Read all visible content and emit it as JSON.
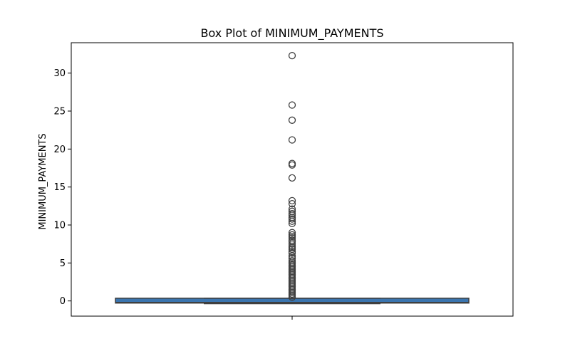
{
  "chart_data": {
    "type": "box",
    "title": "Box Plot of MINIMUM_PAYMENTS",
    "xlabel": "",
    "ylabel": "MINIMUM_PAYMENTS",
    "ylim": [
      -2,
      34
    ],
    "yticks": [
      0,
      5,
      10,
      15,
      20,
      25,
      30
    ],
    "grid": false,
    "box": {
      "q1": -0.28,
      "median": -0.2,
      "q3": 0.36,
      "whisker_low": -0.36,
      "whisker_high": 0.36,
      "outliers": [
        32.3,
        25.8,
        23.8,
        21.2,
        18.1,
        17.9,
        16.2,
        13.2,
        12.8,
        12.1,
        11.8,
        11.5,
        11.3,
        11.0,
        10.8,
        10.5,
        10.2,
        9.0,
        8.7,
        8.5,
        8.3,
        8.0,
        7.8,
        7.5,
        7.2,
        7.0,
        6.8,
        6.5,
        6.3,
        5.9,
        5.6,
        5.3,
        5.1,
        4.9,
        4.7,
        4.5,
        4.3,
        4.1,
        3.9,
        3.7,
        3.5,
        3.3,
        3.1,
        2.9,
        2.7,
        2.5,
        2.3,
        2.1,
        1.9,
        1.7,
        1.5,
        1.3,
        1.1,
        0.9,
        0.7,
        0.5
      ]
    },
    "colors": {
      "box_fill": "#3b75af",
      "line": "#3f3f3f",
      "outlier_edge": "#3f3f3f",
      "frame": "#000000"
    }
  }
}
